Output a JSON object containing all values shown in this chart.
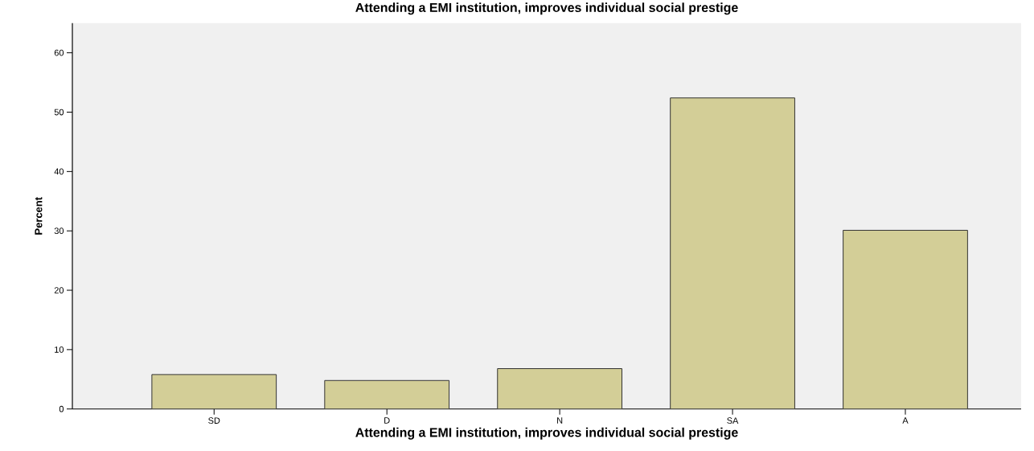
{
  "chart_data": {
    "type": "bar",
    "title": "Attending a EMI institution, improves individual social prestige",
    "xlabel": "Attending a EMI institution, improves individual social prestige",
    "ylabel": "Percent",
    "categories": [
      "SD",
      "D",
      "N",
      "SA",
      "A"
    ],
    "values": [
      5.8,
      4.8,
      6.8,
      52.4,
      30.1
    ],
    "color": "#d3ce97",
    "ylim": [
      0,
      65
    ],
    "yticks": [
      0,
      10,
      20,
      30,
      40,
      50,
      60
    ],
    "grid": false
  }
}
